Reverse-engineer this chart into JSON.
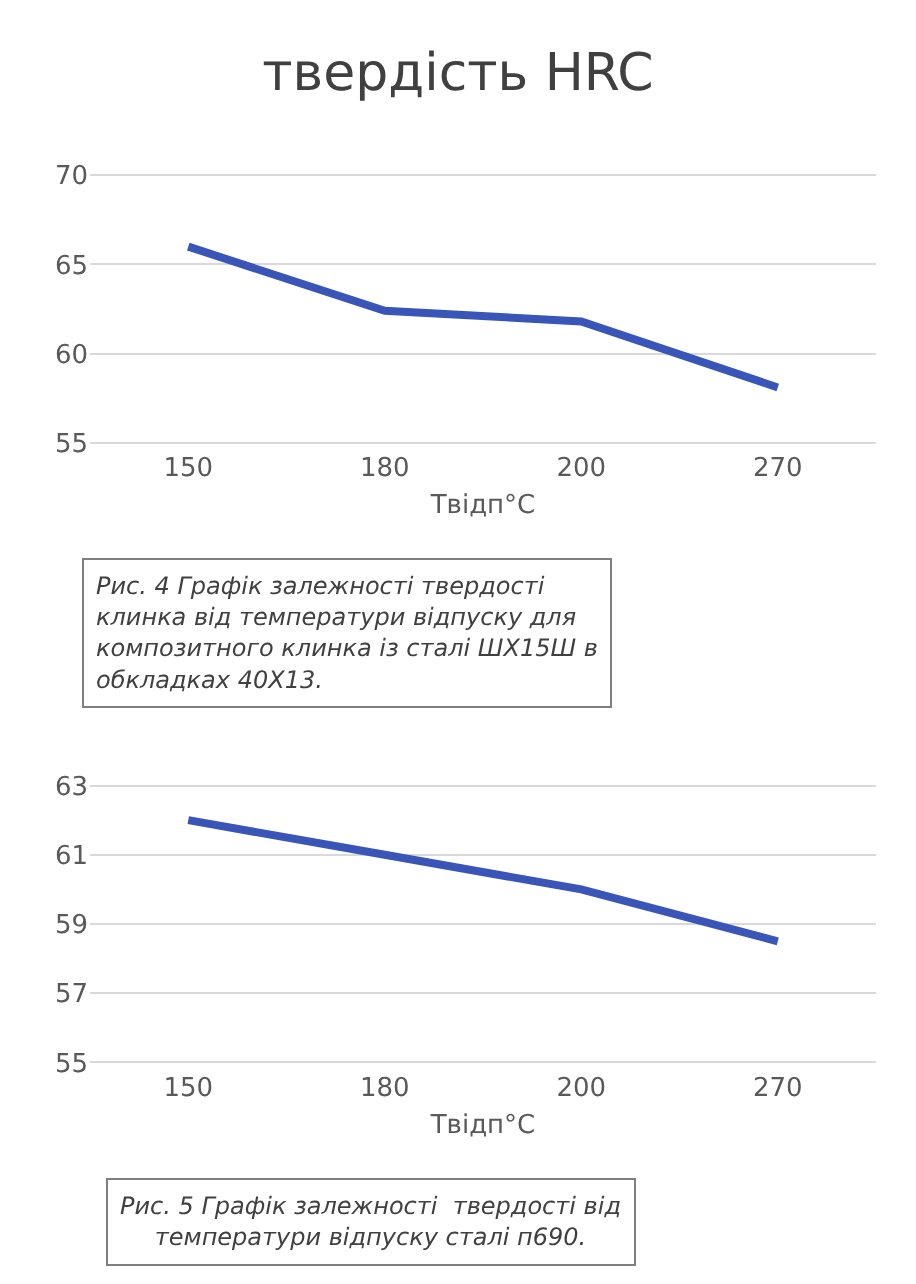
{
  "chart_data": [
    {
      "type": "line",
      "title": "твердість HRC",
      "xlabel": "Твідп°С",
      "categories": [
        "150",
        "180",
        "200",
        "270"
      ],
      "series": [
        {
          "color": "#3a55b8",
          "values": [
            66,
            62.4,
            61.8,
            58.1
          ]
        }
      ],
      "ylim": [
        55,
        70
      ],
      "yticks": [
        55,
        60,
        65,
        70
      ],
      "grid": "y",
      "marker": "none",
      "line_style": "solid",
      "annotations": [
        "Рис. 4 Графік залежності твердості\nклинка від температури відпуску для\nкомпозитного клинка із сталі ШХ15Ш в\nобкладках 40Х13."
      ]
    },
    {
      "type": "line",
      "xlabel": "Твідп°С",
      "categories": [
        "150",
        "180",
        "200",
        "270"
      ],
      "series": [
        {
          "color": "#3a55b8",
          "values": [
            62,
            61,
            60,
            58.5
          ]
        }
      ],
      "ylim": [
        55,
        63
      ],
      "yticks": [
        55,
        57,
        59,
        61,
        63
      ],
      "grid": "y",
      "marker": "none",
      "line_style": "solid",
      "annotations": [
        "Рис. 5 Графік залежності  твердості від\nтемператури відпуску сталі п690."
      ]
    }
  ]
}
